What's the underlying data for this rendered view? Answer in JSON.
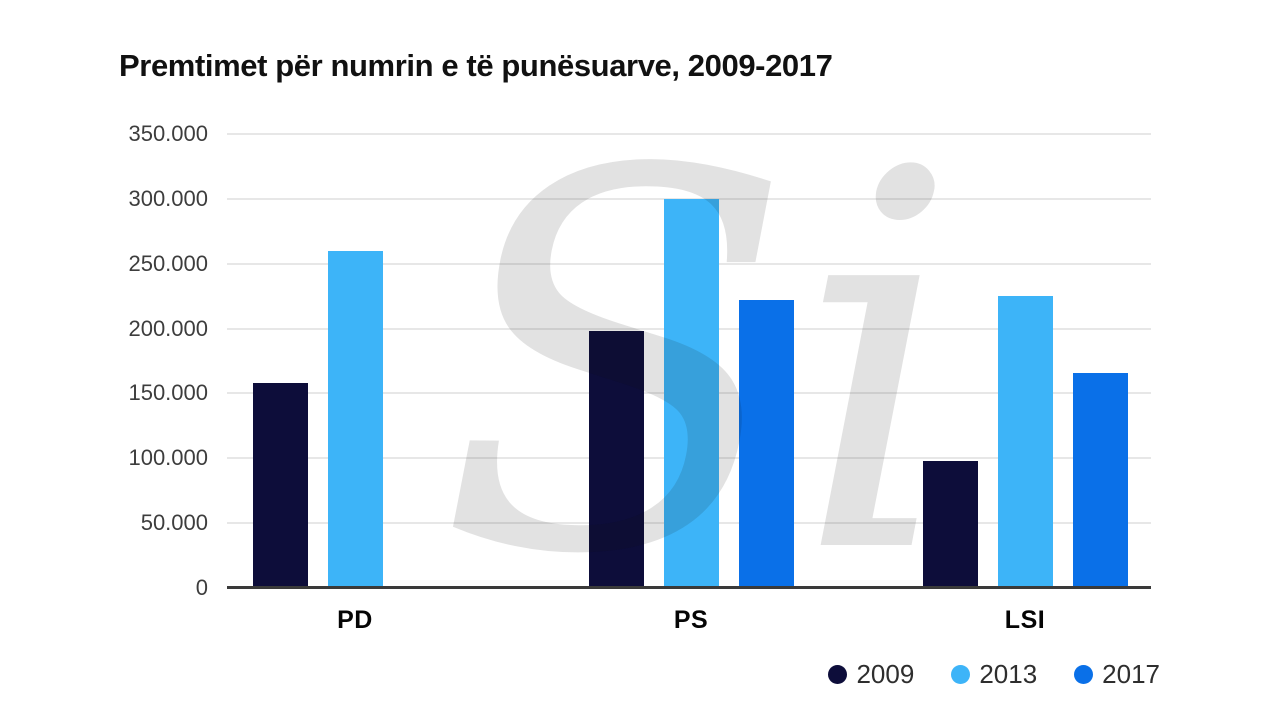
{
  "page": {
    "background": "#ffffff"
  },
  "chart_data": {
    "type": "bar",
    "title": "Premtimet për numrin e të punësuarve, 2009-2017",
    "categories": [
      "PD",
      "PS",
      "LSI"
    ],
    "series": [
      {
        "name": "2009",
        "color": "#0D0D3A",
        "values": [
          158000,
          198000,
          98000
        ]
      },
      {
        "name": "2013",
        "color": "#3DB4F8",
        "values": [
          260000,
          300000,
          225000
        ]
      },
      {
        "name": "2017",
        "color": "#0A70E8",
        "values": [
          null,
          222000,
          166000
        ]
      }
    ],
    "ylim": [
      0,
      350000
    ],
    "y_tick_step": 50000,
    "y_ticks": [
      {
        "value": 350000,
        "label": "350.000"
      },
      {
        "value": 300000,
        "label": "300.000"
      },
      {
        "value": 250000,
        "label": "250.000"
      },
      {
        "value": 200000,
        "label": "200.000"
      },
      {
        "value": 150000,
        "label": "150.000"
      },
      {
        "value": 100000,
        "label": "100.000"
      },
      {
        "value": 50000,
        "label": "50.000"
      },
      {
        "value": 0,
        "label": "0"
      }
    ],
    "grid": true,
    "legend_position": "bottom-right",
    "legend": [
      {
        "label": "2009",
        "color": "#0D0D3A"
      },
      {
        "label": "2013",
        "color": "#3DB4F8"
      },
      {
        "label": "2017",
        "color": "#0A70E8"
      }
    ],
    "watermark": "Si",
    "axis_colors": {
      "gridline": "#E7E7E7",
      "baseline": "#3A3A3A",
      "tick_label": "#3D3D3D",
      "category_label": "#050505"
    }
  }
}
